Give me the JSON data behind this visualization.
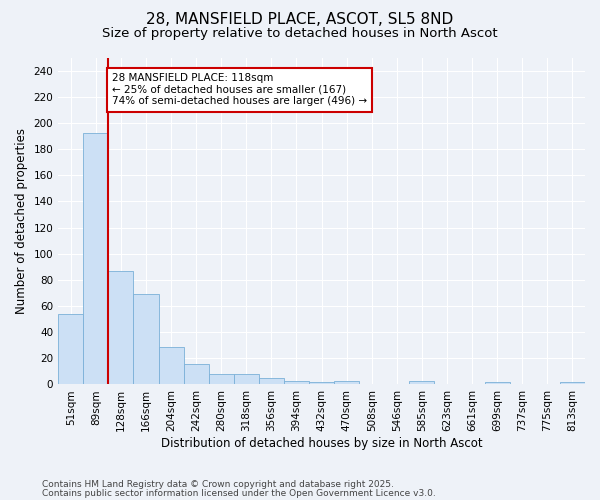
{
  "title_line1": "28, MANSFIELD PLACE, ASCOT, SL5 8ND",
  "title_line2": "Size of property relative to detached houses in North Ascot",
  "xlabel": "Distribution of detached houses by size in North Ascot",
  "ylabel": "Number of detached properties",
  "categories": [
    "51sqm",
    "89sqm",
    "128sqm",
    "166sqm",
    "204sqm",
    "242sqm",
    "280sqm",
    "318sqm",
    "356sqm",
    "394sqm",
    "432sqm",
    "470sqm",
    "508sqm",
    "546sqm",
    "585sqm",
    "623sqm",
    "661sqm",
    "699sqm",
    "737sqm",
    "775sqm",
    "813sqm"
  ],
  "values": [
    54,
    192,
    87,
    69,
    29,
    16,
    8,
    8,
    5,
    3,
    2,
    3,
    0,
    0,
    3,
    0,
    0,
    2,
    0,
    0,
    2
  ],
  "bar_color": "#cce0f5",
  "bar_edge_color": "#7ab0d8",
  "red_line_x": 1.5,
  "annotation_text": "28 MANSFIELD PLACE: 118sqm\n← 25% of detached houses are smaller (167)\n74% of semi-detached houses are larger (496) →",
  "annotation_box_color": "#ffffff",
  "annotation_border_color": "#cc0000",
  "ylim": [
    0,
    250
  ],
  "yticks": [
    0,
    20,
    40,
    60,
    80,
    100,
    120,
    140,
    160,
    180,
    200,
    220,
    240
  ],
  "footnote_line1": "Contains HM Land Registry data © Crown copyright and database right 2025.",
  "footnote_line2": "Contains public sector information licensed under the Open Government Licence v3.0.",
  "background_color": "#eef2f8",
  "plot_bg_color": "#eef2f8",
  "grid_color": "#ffffff",
  "title_fontsize": 11,
  "subtitle_fontsize": 9.5,
  "axis_label_fontsize": 8.5,
  "tick_fontsize": 7.5,
  "annotation_fontsize": 7.5,
  "footnote_fontsize": 6.5
}
